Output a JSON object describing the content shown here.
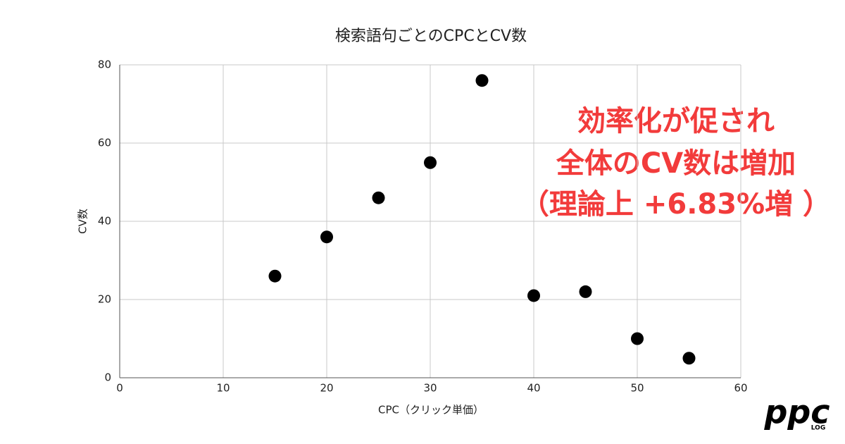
{
  "chart_data": {
    "type": "scatter",
    "title": "検索語句ごとのCPCとCV数",
    "x_label": "CPC（クリック単価）",
    "y_label": "CV数",
    "x": [
      15,
      20,
      25,
      30,
      35,
      40,
      45,
      50,
      55
    ],
    "values": [
      26,
      36,
      46,
      55,
      76,
      21,
      22,
      10,
      5
    ],
    "color": "#000000",
    "xlim": [
      0,
      60
    ],
    "xticks": [
      0,
      10,
      20,
      30,
      40,
      50,
      60
    ],
    "ylim": [
      0,
      80
    ],
    "yticks": [
      0,
      20,
      40,
      60,
      80
    ],
    "grid": true,
    "annotations": [
      "効率化が促され",
      "全体のCV数は増加",
      "（理論上 +6.83%増 ）"
    ]
  },
  "logo": {
    "main": "ppc",
    "sub": "LOG"
  }
}
